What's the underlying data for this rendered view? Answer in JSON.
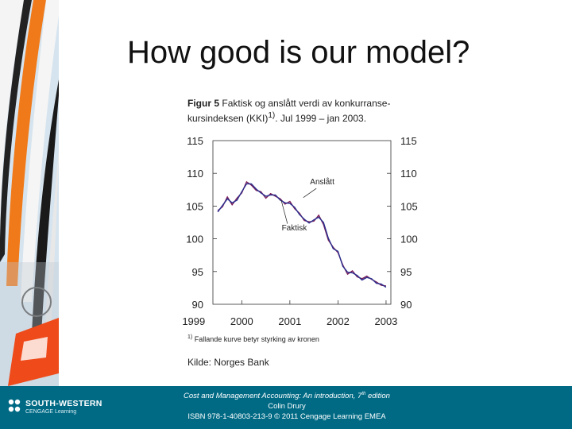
{
  "slide": {
    "title": "How good is our model?"
  },
  "figure": {
    "label": "Figur 5",
    "caption": "Faktisk og anslått verdi av konkurranse-kursindeksen (KKI)",
    "caption_line1": "Faktisk og anslått verdi av konkurranse-",
    "caption_line2_a": "kursindeksen (KKI)",
    "caption_sup": "1)",
    "caption_line2_b": ". Jul 1999 – jan 2003.",
    "footnote_mark": "1)",
    "footnote": "Fallande kurve betyr styrking av kronen",
    "source": "Kilde: Norges Bank"
  },
  "chart_data": {
    "type": "line",
    "title": "Faktisk og anslått verdi av konkurransekursindeksen (KKI). Jul 1999 – jan 2003.",
    "xlabel": "",
    "ylabel": "",
    "xlim": [
      1999.4,
      2003.1
    ],
    "ylim": [
      90,
      115
    ],
    "x_ticks": [
      1999,
      2000,
      2001,
      2002,
      2003
    ],
    "y_ticks": [
      115,
      110,
      105,
      100,
      95,
      90
    ],
    "annotations": [
      "Anslått",
      "Faktisk"
    ],
    "series": [
      {
        "name": "Faktisk",
        "color": "#7a1f5a",
        "x": [
          1999.5,
          1999.6,
          1999.7,
          1999.8,
          1999.9,
          2000.0,
          2000.1,
          2000.2,
          2000.3,
          2000.4,
          2000.5,
          2000.6,
          2000.7,
          2000.8,
          2000.9,
          2001.0,
          2001.1,
          2001.2,
          2001.3,
          2001.4,
          2001.5,
          2001.6,
          2001.7,
          2001.8,
          2001.9,
          2002.0,
          2002.1,
          2002.2,
          2002.3,
          2002.4,
          2002.5,
          2002.6,
          2002.7,
          2002.8,
          2002.9,
          2003.0
        ],
        "values": [
          104.3,
          104.9,
          106.4,
          105.2,
          106.2,
          107.0,
          108.7,
          108.2,
          107.4,
          107.2,
          106.2,
          106.9,
          106.5,
          106.1,
          105.3,
          105.7,
          104.6,
          103.9,
          102.8,
          102.6,
          102.7,
          103.6,
          102.2,
          99.8,
          98.7,
          97.9,
          96.0,
          94.6,
          95.1,
          94.2,
          93.9,
          94.3,
          93.8,
          93.4,
          92.9,
          92.8
        ]
      },
      {
        "name": "Anslått",
        "color": "#2a2f8f",
        "x": [
          1999.5,
          1999.6,
          1999.7,
          1999.8,
          1999.9,
          2000.0,
          2000.1,
          2000.2,
          2000.3,
          2000.4,
          2000.5,
          2000.6,
          2000.7,
          2000.8,
          2000.9,
          2001.0,
          2001.1,
          2001.2,
          2001.3,
          2001.4,
          2001.5,
          2001.6,
          2001.7,
          2001.8,
          2001.9,
          2002.0,
          2002.1,
          2002.2,
          2002.3,
          2002.4,
          2002.5,
          2002.6,
          2002.7,
          2002.8,
          2002.9,
          2003.0
        ],
        "values": [
          104.1,
          105.1,
          106.1,
          105.5,
          105.9,
          107.2,
          108.4,
          108.4,
          107.6,
          107.0,
          106.5,
          106.7,
          106.7,
          105.9,
          105.5,
          105.4,
          104.8,
          103.7,
          103.0,
          102.4,
          102.9,
          103.3,
          102.5,
          100.1,
          98.5,
          98.1,
          95.8,
          94.9,
          94.8,
          94.4,
          93.7,
          94.1,
          93.9,
          93.2,
          93.1,
          92.6
        ]
      }
    ]
  },
  "footer": {
    "logo_main": "SOUTH-WESTERN",
    "logo_sub": "CENGAGE Learning",
    "line1": "Cost and Management Accounting: An introduction, 7",
    "line1_sup": "th",
    "line1_end": " edition",
    "line2": "Colin Drury",
    "line3": "ISBN 978-1-40803-213-9 © 2011 Cengage Learning EMEA"
  }
}
